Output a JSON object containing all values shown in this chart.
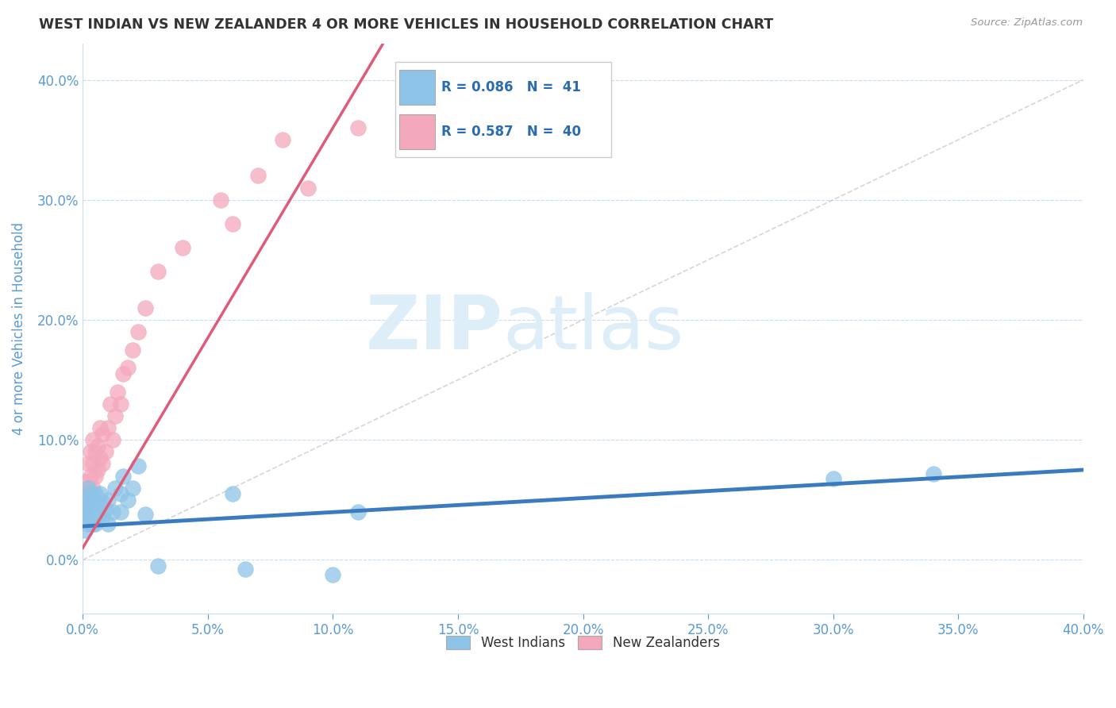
{
  "title": "WEST INDIAN VS NEW ZEALANDER 4 OR MORE VEHICLES IN HOUSEHOLD CORRELATION CHART",
  "source": "Source: ZipAtlas.com",
  "ylabel": "4 or more Vehicles in Household",
  "legend_label1": "West Indians",
  "legend_label2": "New Zealanders",
  "watermark_zip": "ZIP",
  "watermark_atlas": "atlas",
  "color_blue": "#8ec4e8",
  "color_pink": "#f4a8bc",
  "color_blue_line": "#3a7bbf",
  "color_pink_line": "#e05a7a",
  "color_grid": "#c8ddf0",
  "color_tick": "#5b9bd5",
  "xmin": 0.0,
  "xmax": 0.4,
  "ymin": -0.045,
  "ymax": 0.43,
  "wi_x": [
    0.001,
    0.001,
    0.001,
    0.002,
    0.002,
    0.002,
    0.002,
    0.003,
    0.003,
    0.003,
    0.004,
    0.004,
    0.004,
    0.005,
    0.005,
    0.005,
    0.006,
    0.006,
    0.007,
    0.007,
    0.008,
    0.008,
    0.009,
    0.01,
    0.01,
    0.012,
    0.013,
    0.015,
    0.015,
    0.016,
    0.018,
    0.02,
    0.022,
    0.025,
    0.03,
    0.06,
    0.065,
    0.1,
    0.11,
    0.3,
    0.34
  ],
  "wi_y": [
    0.035,
    0.025,
    0.045,
    0.03,
    0.04,
    0.05,
    0.06,
    0.035,
    0.045,
    0.055,
    0.03,
    0.04,
    0.05,
    0.03,
    0.042,
    0.055,
    0.035,
    0.048,
    0.04,
    0.055,
    0.035,
    0.048,
    0.042,
    0.03,
    0.05,
    0.04,
    0.06,
    0.04,
    0.055,
    0.07,
    0.05,
    0.06,
    0.078,
    0.038,
    -0.005,
    0.055,
    -0.008,
    -0.012,
    0.04,
    0.068,
    0.072
  ],
  "nz_x": [
    0.001,
    0.001,
    0.001,
    0.002,
    0.002,
    0.002,
    0.003,
    0.003,
    0.003,
    0.004,
    0.004,
    0.004,
    0.005,
    0.005,
    0.006,
    0.006,
    0.007,
    0.007,
    0.008,
    0.008,
    0.009,
    0.01,
    0.011,
    0.012,
    0.013,
    0.014,
    0.015,
    0.016,
    0.018,
    0.02,
    0.022,
    0.025,
    0.03,
    0.04,
    0.055,
    0.06,
    0.07,
    0.08,
    0.09,
    0.11
  ],
  "nz_y": [
    0.04,
    0.055,
    0.065,
    0.048,
    0.06,
    0.08,
    0.055,
    0.07,
    0.09,
    0.06,
    0.08,
    0.1,
    0.07,
    0.09,
    0.075,
    0.095,
    0.085,
    0.11,
    0.08,
    0.105,
    0.09,
    0.11,
    0.13,
    0.1,
    0.12,
    0.14,
    0.13,
    0.155,
    0.16,
    0.175,
    0.19,
    0.21,
    0.24,
    0.26,
    0.3,
    0.28,
    0.32,
    0.35,
    0.31,
    0.36
  ],
  "blue_line_x0": 0.0,
  "blue_line_x1": 0.4,
  "blue_line_y0": 0.028,
  "blue_line_y1": 0.075,
  "pink_line_x0": 0.0,
  "pink_line_x1": 0.12,
  "pink_line_y0": 0.01,
  "pink_line_y1": 0.43
}
